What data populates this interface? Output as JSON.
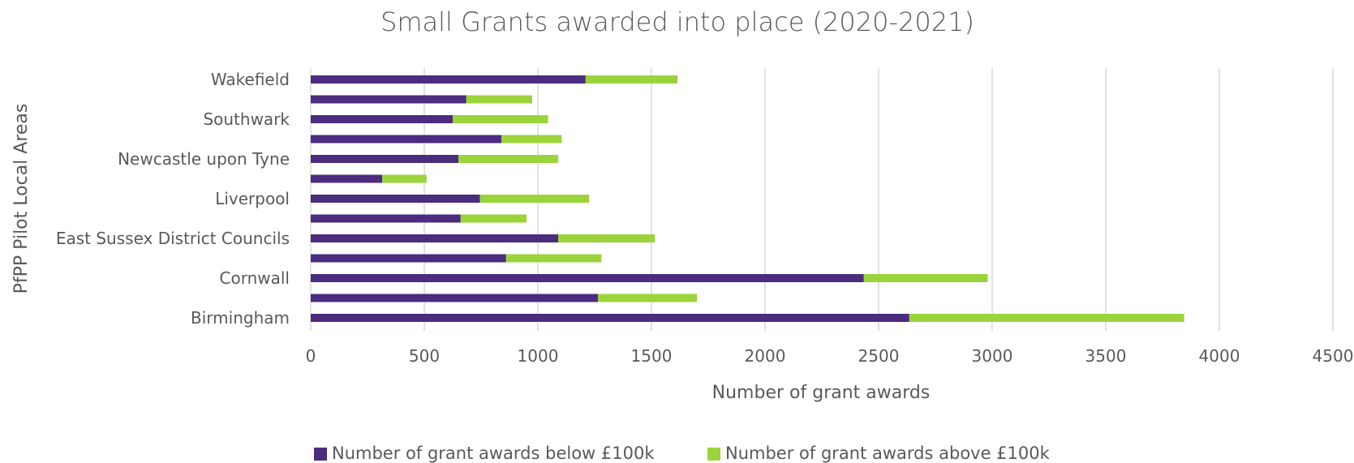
{
  "chart_data": {
    "type": "bar",
    "orientation": "horizontal",
    "stacked": true,
    "title": "Small Grants awarded into place (2020-2021)",
    "xlabel": "Number of grant awards",
    "ylabel": "PfPP Pilot Local Areas",
    "xlim": [
      0,
      4500
    ],
    "xticks": [
      0,
      500,
      1000,
      1500,
      2000,
      2500,
      3000,
      3500,
      4000,
      4500
    ],
    "grid": "vertical",
    "legend_position": "bottom",
    "categories": [
      "Wakefield",
      "",
      "Southwark",
      "",
      "Newcastle upon Tyne",
      "",
      "Liverpool",
      "",
      "East Sussex District Councils",
      "",
      "Cornwall",
      "",
      "Birmingham"
    ],
    "series": [
      {
        "name": "Number of grant awards below £100k",
        "color": "#4b2c7f",
        "values": [
          1210,
          685,
          625,
          840,
          650,
          315,
          745,
          660,
          1090,
          860,
          2435,
          1265,
          2635
        ]
      },
      {
        "name": "Number of grant awards above £100k",
        "color": "#9bd43a",
        "values": [
          405,
          290,
          420,
          265,
          440,
          195,
          480,
          290,
          425,
          420,
          545,
          435,
          1210
        ]
      }
    ]
  }
}
